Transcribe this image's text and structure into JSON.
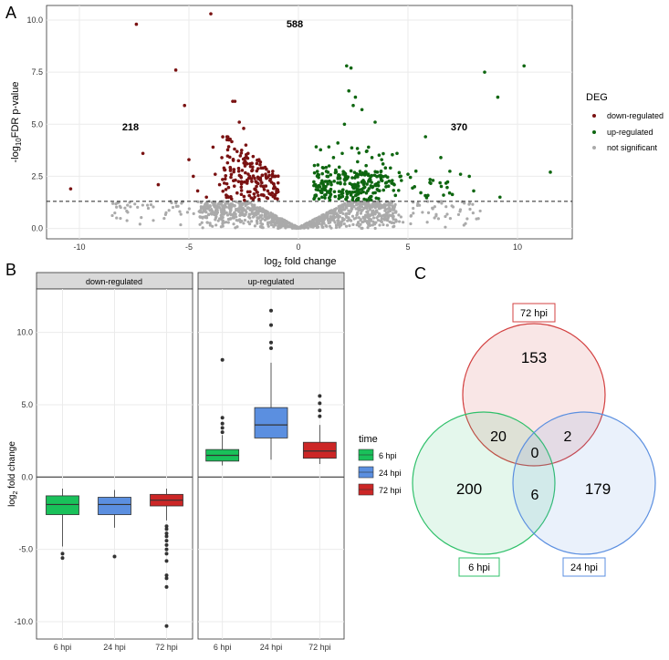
{
  "panels": {
    "a": "A",
    "b": "B",
    "c": "C"
  },
  "colors": {
    "down": "#7a1212",
    "up": "#0e6610",
    "ns": "#aaaaaa",
    "box_6": "#19c15a",
    "box_24": "#5b8fe0",
    "box_72": "#cc2626",
    "venn_72": "#d34040",
    "venn_24": "#5b8fe0",
    "venn_6": "#2fc06a"
  },
  "chart_data": [
    {
      "type": "scatter",
      "name": "volcano",
      "xlabel": "log2 fold change",
      "xlabel_main": "log",
      "xlabel_sub": "2",
      "xlabel_rest": " fold change",
      "ylabel_pre": "-log",
      "ylabel_sub": "10",
      "ylabel_rest": "FDR p-value",
      "xlim": [
        -11.5,
        12.5
      ],
      "ylim": [
        -0.5,
        10.7
      ],
      "xticks": [
        -10,
        -5,
        0,
        5,
        10
      ],
      "xtick_labels": [
        "-10",
        "-5",
        "0",
        "5",
        "10"
      ],
      "yticks": [
        0,
        2.5,
        5,
        7.5,
        10
      ],
      "ytick_labels": [
        "0.0",
        "2.5",
        "5.0",
        "7.5",
        "10.0"
      ],
      "threshold_y": 1.3,
      "counts": {
        "total": "588",
        "down": "218",
        "up": "370"
      },
      "legend": {
        "title": "DEG",
        "entries": [
          "down-regulated",
          "up-regulated",
          "not significant"
        ]
      },
      "down_points": [
        [
          -10.4,
          1.9
        ],
        [
          -7.4,
          9.8
        ],
        [
          -7.1,
          3.6
        ],
        [
          -6.4,
          2.1
        ],
        [
          -5.6,
          7.6
        ],
        [
          -5.2,
          5.9
        ],
        [
          -5.0,
          3.3
        ],
        [
          -4.8,
          2.5
        ],
        [
          -4.6,
          1.8
        ],
        [
          -4.0,
          10.3
        ],
        [
          -3.9,
          3.9
        ],
        [
          -3.6,
          2.1
        ],
        [
          -3.4,
          2.9
        ],
        [
          -3.2,
          4.3
        ],
        [
          -3.0,
          6.1
        ],
        [
          -2.9,
          6.1
        ],
        [
          -2.7,
          5.1
        ],
        [
          -2.5,
          4.8
        ],
        [
          -2.4,
          4.0
        ],
        [
          -2.3,
          3.6
        ],
        [
          -2.2,
          3.1
        ],
        [
          -2.1,
          2.8
        ],
        [
          -2.0,
          2.4
        ],
        [
          -1.9,
          2.2
        ],
        [
          -1.8,
          3.3
        ],
        [
          -1.7,
          2.9
        ],
        [
          -1.6,
          2.0
        ],
        [
          -1.5,
          2.6
        ],
        [
          -1.4,
          1.8
        ],
        [
          -1.3,
          2.3
        ],
        [
          -1.2,
          1.7
        ],
        [
          -1.1,
          2.0
        ],
        [
          -1.0,
          1.8
        ],
        [
          -2.6,
          2.2
        ],
        [
          -2.8,
          1.7
        ],
        [
          -3.3,
          1.6
        ],
        [
          -2.0,
          1.5
        ],
        [
          -1.6,
          1.6
        ],
        [
          -3.8,
          2.6
        ],
        [
          -4.2,
          1.5
        ]
      ],
      "up_points": [
        [
          0.8,
          1.6
        ],
        [
          0.9,
          2.0
        ],
        [
          1.0,
          1.8
        ],
        [
          1.1,
          2.2
        ],
        [
          1.2,
          1.6
        ],
        [
          1.3,
          2.5
        ],
        [
          1.4,
          3.0
        ],
        [
          1.5,
          2.1
        ],
        [
          1.6,
          3.4
        ],
        [
          1.7,
          2.8
        ],
        [
          1.8,
          4.1
        ],
        [
          1.9,
          2.4
        ],
        [
          2.0,
          3.6
        ],
        [
          2.1,
          5.0
        ],
        [
          2.2,
          7.8
        ],
        [
          2.3,
          6.6
        ],
        [
          2.4,
          7.7
        ],
        [
          2.5,
          5.9
        ],
        [
          2.6,
          6.3
        ],
        [
          2.7,
          3.2
        ],
        [
          2.8,
          2.6
        ],
        [
          2.9,
          5.7
        ],
        [
          3.0,
          2.2
        ],
        [
          3.2,
          3.9
        ],
        [
          3.4,
          2.0
        ],
        [
          3.5,
          5.1
        ],
        [
          3.6,
          2.7
        ],
        [
          3.8,
          3.3
        ],
        [
          4.0,
          2.0
        ],
        [
          4.2,
          2.9
        ],
        [
          4.5,
          3.6
        ],
        [
          4.7,
          2.3
        ],
        [
          5.0,
          2.6
        ],
        [
          5.3,
          2.0
        ],
        [
          5.8,
          4.4
        ],
        [
          6.0,
          2.2
        ],
        [
          6.5,
          3.4
        ],
        [
          6.9,
          1.7
        ],
        [
          7.4,
          2.6
        ],
        [
          7.8,
          2.5
        ],
        [
          8.0,
          1.8
        ],
        [
          8.5,
          7.5
        ],
        [
          9.1,
          6.3
        ],
        [
          9.2,
          1.5
        ],
        [
          10.3,
          7.8
        ],
        [
          11.5,
          2.7
        ],
        [
          3.1,
          1.7
        ],
        [
          2.4,
          1.6
        ]
      ]
    },
    {
      "type": "boxplot",
      "name": "fold-change-boxplots",
      "ylabel_pre": "log",
      "ylabel_sub": "2",
      "ylabel_rest": " fold change",
      "ylim": [
        -11.2,
        13.0
      ],
      "yticks": [
        -10,
        -5,
        0,
        5,
        10
      ],
      "ytick_labels": [
        "-10.0",
        "-5.0",
        "0.0",
        "5.0",
        "10.0"
      ],
      "facets": [
        {
          "title": "down-regulated",
          "categories": [
            "6 hpi",
            "24 hpi",
            "72 hpi"
          ],
          "boxes": [
            {
              "q1": -2.6,
              "median": -1.9,
              "q3": -1.3,
              "low": -4.8,
              "high": -0.8,
              "outliers": [
                -5.3,
                -5.6
              ]
            },
            {
              "q1": -2.6,
              "median": -1.9,
              "q3": -1.4,
              "low": -3.5,
              "high": -0.9,
              "outliers": [
                -5.5
              ]
            },
            {
              "q1": -2.0,
              "median": -1.6,
              "q3": -1.2,
              "low": -3.0,
              "high": -0.8,
              "outliers": [
                -3.4,
                -3.6,
                -3.9,
                -4.1,
                -4.4,
                -4.7,
                -5.0,
                -5.3,
                -5.8,
                -6.8,
                -7.0,
                -7.6,
                -10.3
              ]
            }
          ]
        },
        {
          "title": "up-regulated",
          "categories": [
            "6 hpi",
            "24 hpi",
            "72 hpi"
          ],
          "boxes": [
            {
              "q1": 1.1,
              "median": 1.5,
              "q3": 1.9,
              "low": 0.8,
              "high": 2.9,
              "outliers": [
                3.1,
                3.4,
                3.7,
                4.1,
                8.1
              ]
            },
            {
              "q1": 2.7,
              "median": 3.6,
              "q3": 4.8,
              "low": 1.2,
              "high": 7.9,
              "outliers": [
                8.9,
                9.3,
                10.5,
                11.5
              ]
            },
            {
              "q1": 1.3,
              "median": 1.8,
              "q3": 2.4,
              "low": 0.9,
              "high": 3.6,
              "outliers": [
                4.2,
                4.6,
                5.1,
                5.6
              ]
            }
          ]
        }
      ],
      "legend": {
        "title": "time",
        "entries": [
          "6 hpi",
          "24 hpi",
          "72 hpi"
        ]
      }
    },
    {
      "type": "venn",
      "name": "deg-venn",
      "sets": [
        {
          "label": "72 hpi",
          "only": "153"
        },
        {
          "label": "6 hpi",
          "only": "200"
        },
        {
          "label": "24 hpi",
          "only": "179"
        }
      ],
      "intersections": {
        "6_72": "20",
        "24_72": "2",
        "6_24": "6",
        "all": "0"
      }
    }
  ]
}
